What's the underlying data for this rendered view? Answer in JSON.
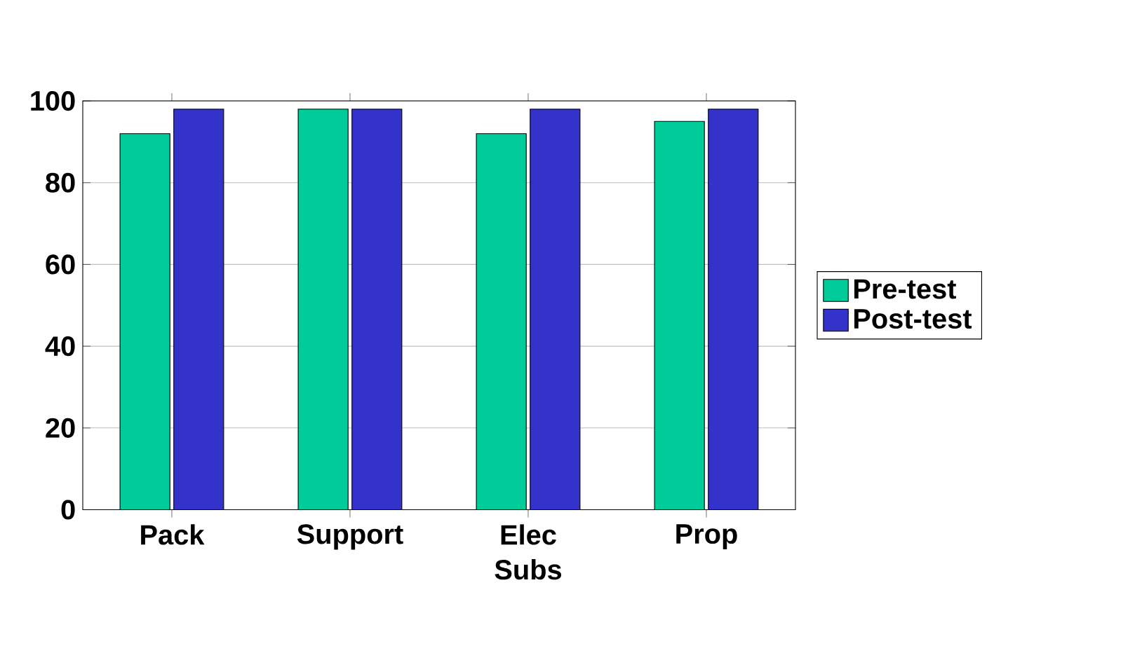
{
  "chart_data": {
    "type": "bar",
    "categories": [
      "Pack",
      "Support",
      "Elec Subs",
      "Prop"
    ],
    "series": [
      {
        "name": "Pre-test",
        "color": "#00cc99",
        "values": [
          92,
          98,
          92,
          95
        ]
      },
      {
        "name": "Post-test",
        "color": "#3333cc",
        "values": [
          98,
          98,
          98,
          98
        ]
      }
    ],
    "ylim": [
      0,
      100
    ],
    "yticks": [
      0,
      20,
      40,
      60,
      80,
      100
    ],
    "grid": "y",
    "legend": "right"
  }
}
